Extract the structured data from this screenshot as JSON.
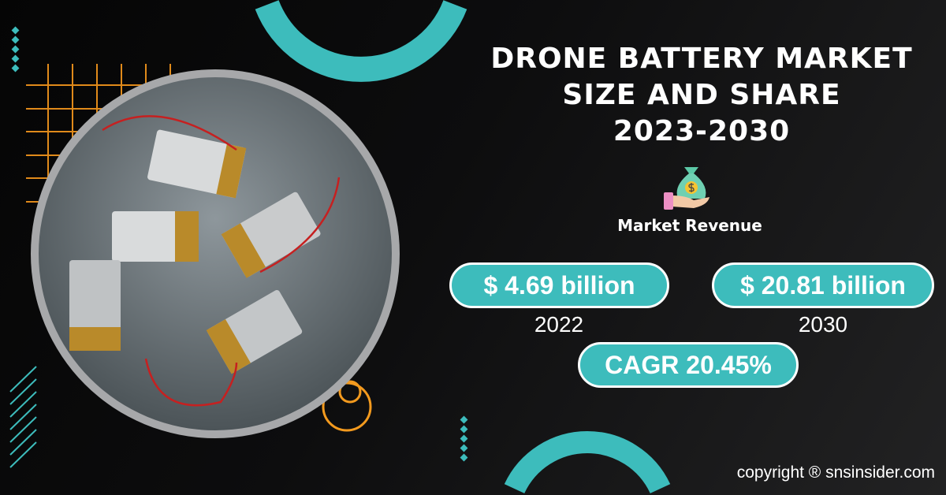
{
  "title": {
    "line1": "DRONE BATTERY MARKET",
    "line2": "SIZE AND SHARE",
    "line3": "2023-2030"
  },
  "revenue": {
    "label": "Market Revenue",
    "icon": "money-bag-hand-icon"
  },
  "stats": [
    {
      "value": "$ 4.69 billion",
      "year": "2022"
    },
    {
      "value": "$ 20.81 billion",
      "year": "2030"
    }
  ],
  "cagr": "CAGR 20.45%",
  "copyright": "copyright ® snsinsider.com",
  "colors": {
    "accent": "#3dbcbc",
    "orange": "#f39a1e",
    "background": "#0d0d0e"
  }
}
